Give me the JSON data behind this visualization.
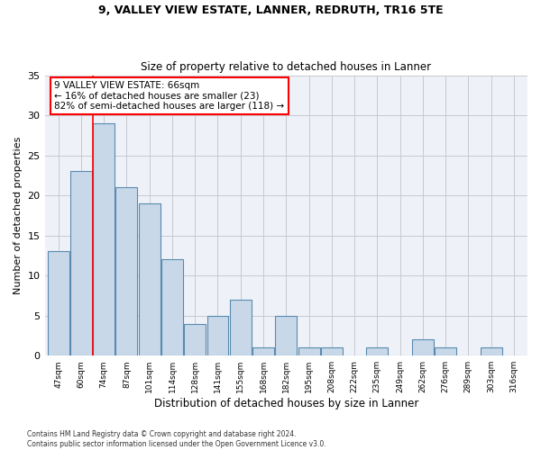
{
  "title1": "9, VALLEY VIEW ESTATE, LANNER, REDRUTH, TR16 5TE",
  "title2": "Size of property relative to detached houses in Lanner",
  "xlabel": "Distribution of detached houses by size in Lanner",
  "ylabel": "Number of detached properties",
  "categories": [
    "47sqm",
    "60sqm",
    "74sqm",
    "87sqm",
    "101sqm",
    "114sqm",
    "128sqm",
    "141sqm",
    "155sqm",
    "168sqm",
    "182sqm",
    "195sqm",
    "208sqm",
    "222sqm",
    "235sqm",
    "249sqm",
    "262sqm",
    "276sqm",
    "289sqm",
    "303sqm",
    "316sqm"
  ],
  "values": [
    13,
    23,
    29,
    21,
    19,
    12,
    4,
    5,
    7,
    1,
    5,
    1,
    1,
    0,
    1,
    0,
    2,
    1,
    0,
    1,
    0
  ],
  "bar_color": "#c8d8e8",
  "bar_edge_color": "#5a8ab0",
  "bar_linewidth": 0.8,
  "grid_color": "#c8c8d0",
  "background_color": "#eef2f8",
  "annotation_text": "9 VALLEY VIEW ESTATE: 66sqm\n← 16% of detached houses are smaller (23)\n82% of semi-detached houses are larger (118) →",
  "annotation_box_color": "white",
  "annotation_box_edge": "red",
  "property_line_x": 1.5,
  "ylim": [
    0,
    35
  ],
  "yticks": [
    0,
    5,
    10,
    15,
    20,
    25,
    30,
    35
  ],
  "footer": "Contains HM Land Registry data © Crown copyright and database right 2024.\nContains public sector information licensed under the Open Government Licence v3.0."
}
